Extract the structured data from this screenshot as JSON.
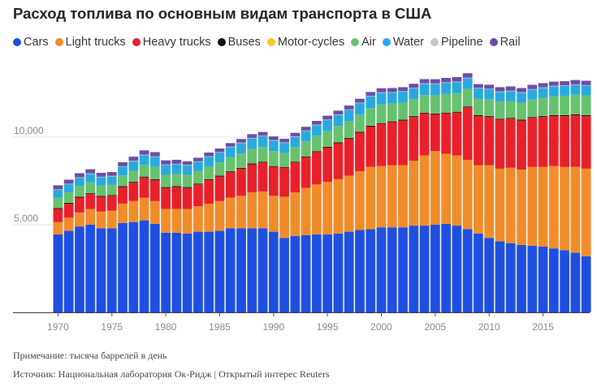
{
  "header": {
    "title": "Расход топлива по основным видам транспорта в США"
  },
  "legend": [
    {
      "label": "Cars",
      "color": "#1f4fe0"
    },
    {
      "label": "Light trucks",
      "color": "#f08c2a"
    },
    {
      "label": "Heavy trucks",
      "color": "#e8202a"
    },
    {
      "label": "Buses",
      "color": "#111111"
    },
    {
      "label": "Motor-cycles",
      "color": "#f5c830"
    },
    {
      "label": "Air",
      "color": "#66c26e"
    },
    {
      "label": "Water",
      "color": "#2aa9e0"
    },
    {
      "label": "Pipeline",
      "color": "#c8c8c8"
    },
    {
      "label": "Rail",
      "color": "#6a4ea6"
    }
  ],
  "footer": {
    "note": "Примечание: тысяча баррелей в день",
    "source": "Источник: Национальная лаборатория Ок-Ридж | Открытый интерес Reuters"
  },
  "chart_data": {
    "type": "bar",
    "stacked": true,
    "title": "Расход топлива по основным видам транспорта в США",
    "unit_note": "тысяча баррелей в день",
    "xlabel": "",
    "ylabel": "",
    "ylim": [
      0,
      15000
    ],
    "y_ticks": [
      5000,
      10000
    ],
    "y_tick_labels": [
      "5,000",
      "10,000"
    ],
    "x_ticks": [
      1970,
      1975,
      1980,
      1985,
      1990,
      1995,
      2000,
      2005,
      2010,
      2015
    ],
    "grid": true,
    "legend_position": "top",
    "x": [
      1970,
      1971,
      1972,
      1973,
      1974,
      1975,
      1976,
      1977,
      1978,
      1979,
      1980,
      1981,
      1982,
      1983,
      1984,
      1985,
      1986,
      1987,
      1988,
      1989,
      1990,
      1991,
      1992,
      1993,
      1994,
      1995,
      1996,
      1997,
      1998,
      1999,
      2000,
      2001,
      2002,
      2003,
      2004,
      2005,
      2006,
      2007,
      2008,
      2009,
      2010,
      2011,
      2012,
      2013,
      2014,
      2015,
      2016,
      2017,
      2018,
      2019
    ],
    "series": [
      {
        "name": "Cars",
        "color": "#1f4fe0",
        "values": [
          4450,
          4650,
          4900,
          5000,
          4800,
          4800,
          5100,
          5150,
          5250,
          5050,
          4550,
          4550,
          4500,
          4600,
          4600,
          4650,
          4800,
          4800,
          4800,
          4800,
          4600,
          4250,
          4350,
          4400,
          4450,
          4450,
          4500,
          4600,
          4700,
          4750,
          4850,
          4850,
          4850,
          4950,
          4950,
          5000,
          5050,
          4950,
          4750,
          4500,
          4250,
          4050,
          3950,
          3850,
          3800,
          3750,
          3650,
          3550,
          3400,
          3200
        ]
      },
      {
        "name": "Light trucks",
        "color": "#f08c2a",
        "values": [
          700,
          750,
          800,
          900,
          950,
          1000,
          1100,
          1200,
          1300,
          1300,
          1350,
          1350,
          1400,
          1450,
          1600,
          1700,
          1750,
          1850,
          2050,
          2100,
          2050,
          2350,
          2500,
          2700,
          2850,
          3000,
          3100,
          3200,
          3350,
          3550,
          3500,
          3550,
          3550,
          3700,
          4000,
          4200,
          4000,
          4000,
          3950,
          3900,
          4150,
          4150,
          4300,
          4300,
          4500,
          4550,
          4700,
          4750,
          4900,
          5000
        ]
      },
      {
        "name": "Heavy trucks",
        "color": "#e8202a",
        "values": [
          750,
          800,
          850,
          850,
          850,
          850,
          950,
          1050,
          1150,
          1200,
          1200,
          1250,
          1200,
          1250,
          1350,
          1400,
          1450,
          1550,
          1600,
          1650,
          1650,
          1650,
          1700,
          1750,
          1850,
          1950,
          2050,
          2100,
          2200,
          2300,
          2400,
          2450,
          2550,
          2500,
          2400,
          2100,
          2300,
          2450,
          3000,
          2800,
          2750,
          2800,
          2800,
          2800,
          2800,
          2850,
          2850,
          2900,
          2950,
          3000
        ]
      },
      {
        "name": "Buses",
        "color": "#111111",
        "values": [
          50,
          50,
          50,
          50,
          50,
          50,
          50,
          50,
          50,
          50,
          50,
          50,
          50,
          50,
          50,
          50,
          50,
          50,
          50,
          50,
          50,
          50,
          50,
          50,
          50,
          50,
          50,
          50,
          50,
          50,
          50,
          50,
          50,
          50,
          50,
          50,
          50,
          50,
          50,
          50,
          50,
          50,
          50,
          50,
          50,
          50,
          50,
          50,
          50,
          50
        ]
      },
      {
        "name": "Motor-cycles",
        "color": "#f5c830",
        "values": [
          10,
          10,
          10,
          10,
          10,
          10,
          10,
          10,
          10,
          10,
          10,
          10,
          10,
          10,
          10,
          10,
          10,
          10,
          10,
          10,
          10,
          10,
          10,
          10,
          10,
          10,
          10,
          10,
          10,
          10,
          10,
          10,
          10,
          10,
          10,
          10,
          10,
          10,
          10,
          10,
          10,
          10,
          10,
          10,
          10,
          10,
          10,
          10,
          10,
          10
        ]
      },
      {
        "name": "Air",
        "color": "#66c26e",
        "values": [
          580,
          590,
          600,
          610,
          580,
          580,
          600,
          620,
          650,
          690,
          690,
          690,
          690,
          700,
          720,
          750,
          790,
          810,
          820,
          830,
          840,
          790,
          820,
          850,
          870,
          900,
          930,
          950,
          970,
          1000,
          1050,
          1000,
          960,
          950,
          990,
          1020,
          1050,
          1050,
          1000,
          940,
          950,
          960,
          950,
          960,
          980,
          1030,
          1070,
          1100,
          1110,
          1120
        ]
      },
      {
        "name": "Water",
        "color": "#2aa9e0",
        "values": [
          450,
          460,
          470,
          480,
          470,
          470,
          500,
          540,
          560,
          570,
          560,
          550,
          540,
          530,
          550,
          560,
          580,
          590,
          600,
          610,
          600,
          570,
          580,
          590,
          600,
          610,
          620,
          640,
          660,
          660,
          670,
          630,
          620,
          620,
          640,
          650,
          640,
          630,
          600,
          580,
          570,
          560,
          560,
          560,
          570,
          570,
          570,
          560,
          560,
          560
        ]
      },
      {
        "name": "Pipeline",
        "color": "#c8c8c8",
        "values": [
          30,
          30,
          30,
          30,
          30,
          30,
          30,
          30,
          30,
          30,
          30,
          30,
          30,
          30,
          30,
          30,
          30,
          30,
          30,
          30,
          30,
          30,
          30,
          30,
          30,
          30,
          30,
          30,
          30,
          30,
          30,
          30,
          30,
          30,
          30,
          30,
          30,
          30,
          30,
          30,
          30,
          30,
          30,
          30,
          30,
          30,
          30,
          30,
          30,
          30
        ]
      },
      {
        "name": "Rail",
        "color": "#6a4ea6",
        "values": [
          230,
          230,
          230,
          235,
          225,
          215,
          225,
          235,
          245,
          245,
          235,
          225,
          205,
          205,
          210,
          200,
          200,
          205,
          210,
          210,
          210,
          205,
          205,
          210,
          215,
          220,
          220,
          220,
          220,
          225,
          230,
          230,
          230,
          235,
          240,
          245,
          250,
          255,
          255,
          215,
          230,
          240,
          245,
          240,
          245,
          240,
          235,
          240,
          245,
          245
        ]
      }
    ]
  }
}
